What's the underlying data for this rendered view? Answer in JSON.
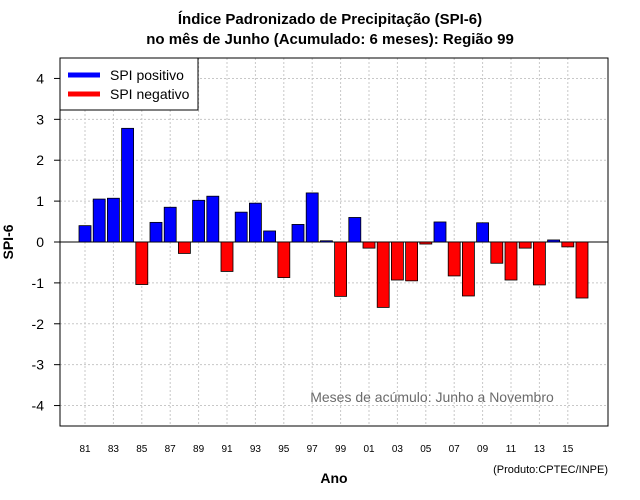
{
  "chart_data": {
    "type": "bar",
    "title": "Índice Padronizado de Precipitação (SPI-6)",
    "subtitle": "no mês de Junho (Acumulado: 6 meses): Região 99",
    "xlabel": "Ano",
    "ylabel": "SPI-6",
    "ylim": [
      -4.5,
      4.5
    ],
    "yticks": [
      -4,
      -3,
      -2,
      -1,
      0,
      1,
      2,
      3,
      4
    ],
    "categories": [
      "81",
      "82",
      "83",
      "84",
      "85",
      "86",
      "87",
      "88",
      "89",
      "90",
      "91",
      "92",
      "93",
      "94",
      "95",
      "96",
      "97",
      "98",
      "99",
      "00",
      "01",
      "02",
      "03",
      "04",
      "05",
      "06",
      "07",
      "08",
      "09",
      "10",
      "11",
      "12",
      "13",
      "14",
      "15",
      "16"
    ],
    "xtick_labels": [
      "81",
      "83",
      "85",
      "87",
      "89",
      "91",
      "93",
      "95",
      "97",
      "99",
      "01",
      "03",
      "05",
      "07",
      "09",
      "11",
      "13",
      "15"
    ],
    "values": [
      0.4,
      1.05,
      1.07,
      2.78,
      -1.04,
      0.48,
      0.85,
      -0.28,
      1.02,
      1.12,
      -0.72,
      0.73,
      0.95,
      0.27,
      -0.87,
      0.43,
      1.2,
      0.03,
      -1.33,
      0.6,
      -0.15,
      -1.6,
      -0.93,
      -0.95,
      -0.05,
      0.49,
      -0.83,
      -1.32,
      0.47,
      -0.52,
      -0.93,
      -0.15,
      -1.05,
      0.05,
      -0.12,
      -1.37
    ],
    "legend": [
      {
        "label": "SPI positivo",
        "color": "#0000ff"
      },
      {
        "label": "SPI negativo",
        "color": "#ff0000"
      }
    ],
    "legend_position": "top-left",
    "positive_color": "#0000ff",
    "negative_color": "#ff0000",
    "grid": true,
    "annotation": "Meses de acúmulo: Junho a Novembro",
    "credit": "(Produto:CPTEC/INPE)"
  }
}
